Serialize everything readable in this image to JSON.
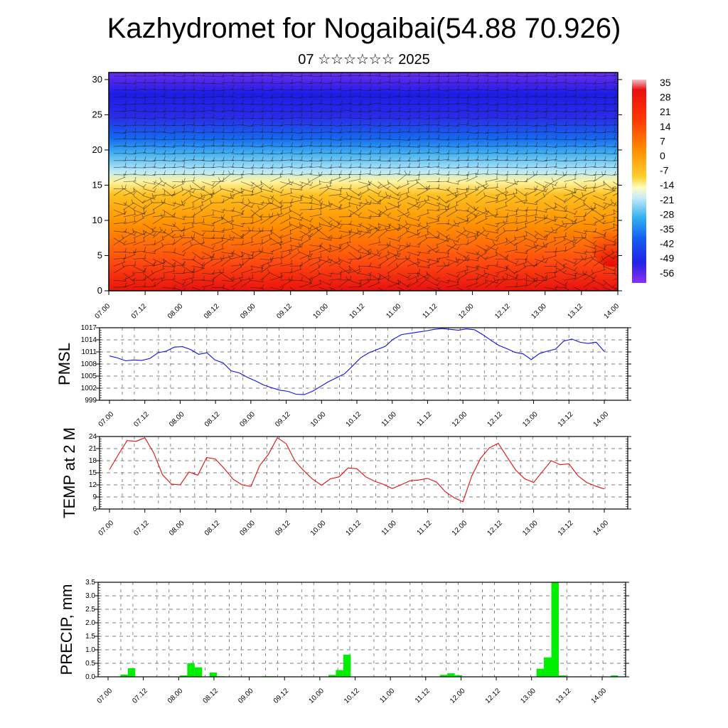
{
  "title": "Kazhydromet for Nogaibai(54.88 70.926)",
  "subtitle": "07 ☆☆☆☆☆☆ 2025",
  "time_labels": [
    "07.00",
    "07.12",
    "08.00",
    "08.12",
    "09.00",
    "09.12",
    "10.00",
    "10.12",
    "11.00",
    "11.12",
    "12.00",
    "12.12",
    "13.00",
    "13.12",
    "14.00"
  ],
  "chart_data": [
    {
      "type": "heatmap",
      "name": "cross-section",
      "yticks": [
        0,
        5,
        10,
        15,
        20,
        25,
        30
      ],
      "ylim": [
        0,
        31
      ],
      "colorbar_labels": [
        "35",
        "28",
        "21",
        "14",
        "7",
        "0",
        "-7",
        "-14",
        "-21",
        "-28",
        "-35",
        "-42",
        "-49",
        "-56"
      ],
      "colors": {
        "hot": "#e01010",
        "warm": "#ff8a00",
        "mild": "#ffd040",
        "cool": "#b8e8f8",
        "cold": "#1890f0",
        "frigid": "#2020e8",
        "top": "#7a30f0"
      }
    },
    {
      "type": "line",
      "ylabel": "PMSL",
      "yticks": [
        999,
        1002,
        1005,
        1008,
        1011,
        1014,
        1017
      ],
      "ylim": [
        999,
        1017
      ],
      "color": "#1010e0",
      "values": [
        1010,
        1009.5,
        1008.8,
        1009,
        1008.9,
        1009.4,
        1010.8,
        1011.2,
        1012.2,
        1012.3,
        1011.6,
        1010.4,
        1010.8,
        1009,
        1008.3,
        1006.3,
        1005.8,
        1004.7,
        1003.8,
        1002.8,
        1002.1,
        1001.5,
        1001.2,
        1000.5,
        1000.4,
        1001.2,
        1002.4,
        1003.6,
        1004.6,
        1005.6,
        1007.6,
        1009.6,
        1010.8,
        1011.6,
        1012.4,
        1014.2,
        1015.3,
        1015.6,
        1015.9,
        1016.2,
        1016.6,
        1016.8,
        1016.6,
        1016.4,
        1016.7,
        1016.5,
        1015.3,
        1013.9,
        1012.6,
        1011.8,
        1010.9,
        1010.5,
        1009.1,
        1010.6,
        1011.2,
        1011.7,
        1013.7,
        1014.2,
        1013.4,
        1013.1,
        1013.4,
        1011.1
      ]
    },
    {
      "type": "line",
      "ylabel": "TEMP at 2 M",
      "yticks": [
        6,
        9,
        12,
        15,
        18,
        21,
        24
      ],
      "ylim": [
        6,
        24
      ],
      "color": "#e01010",
      "values": [
        15.8,
        19.5,
        23,
        22.8,
        23.7,
        20,
        14.5,
        12.2,
        12,
        15.2,
        14.4,
        18.8,
        18.4,
        16,
        13.4,
        12,
        11.6,
        16.8,
        19.6,
        23.7,
        22.2,
        17.9,
        15.5,
        13.4,
        11.9,
        13.5,
        14,
        16.2,
        16,
        14,
        12.9,
        12.1,
        11.1,
        12,
        13,
        13.2,
        13.6,
        12.7,
        10.3,
        8.8,
        7.8,
        14.2,
        18.6,
        21.2,
        22.3,
        18.9,
        15.6,
        13.5,
        12.6,
        15.3,
        18,
        17,
        17.2,
        14.3,
        12.6,
        11.7,
        11
      ]
    },
    {
      "type": "bar",
      "ylabel": "PRECIP, mm",
      "yticks": [
        "0.0",
        "0.5",
        "1.0",
        "1.5",
        "2.0",
        "2.5",
        "3.0",
        "3.5"
      ],
      "ylim": [
        0,
        3.5
      ],
      "color": "#00ee00",
      "values": [
        0,
        0,
        0,
        0.08,
        0.32,
        0,
        0,
        0,
        0,
        0,
        0,
        0.05,
        0.5,
        0.35,
        0,
        0.16,
        0.02,
        0,
        0,
        0,
        0,
        0,
        0.02,
        0.02,
        0,
        0,
        0,
        0,
        0,
        0,
        0,
        0.07,
        0.25,
        0.82,
        0,
        0,
        0,
        0,
        0,
        0,
        0,
        0,
        0,
        0,
        0,
        0,
        0.07,
        0.13,
        0.06,
        0,
        0,
        0,
        0,
        0,
        0,
        0,
        0,
        0,
        0,
        0.3,
        0.72,
        3.5,
        0.05,
        0,
        0,
        0,
        0,
        0,
        0,
        0.05,
        0
      ]
    }
  ]
}
